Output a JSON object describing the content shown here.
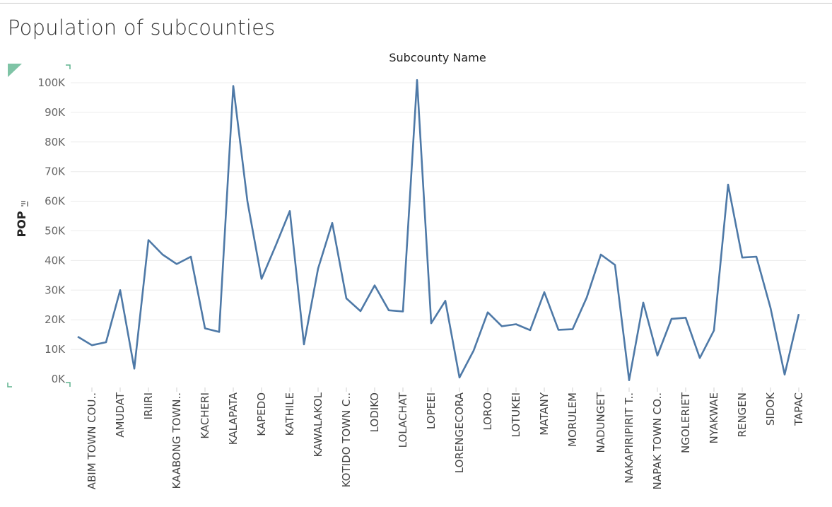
{
  "chart_data": {
    "type": "line",
    "title": "Population of subcounties",
    "column_header": "Subcounty Name",
    "ylabel": "POP",
    "ylabel_icon": "sort-icon",
    "ylim": [
      0,
      100000
    ],
    "yticks": [
      {
        "value": 0,
        "label": "0K"
      },
      {
        "value": 10000,
        "label": "10K"
      },
      {
        "value": 20000,
        "label": "20K"
      },
      {
        "value": 30000,
        "label": "30K"
      },
      {
        "value": 40000,
        "label": "40K"
      },
      {
        "value": 50000,
        "label": "50K"
      },
      {
        "value": 60000,
        "label": "60K"
      },
      {
        "value": 70000,
        "label": "70K"
      },
      {
        "value": 80000,
        "label": "80K"
      },
      {
        "value": 90000,
        "label": "90K"
      },
      {
        "value": 100000,
        "label": "100K"
      }
    ],
    "tick_labels": [
      "ABIM TOWN COU..",
      "AMUDAT",
      "IRIIRI",
      "KAABONG TOWN..",
      "KACHERI",
      "KALAPATA",
      "KAPEDO",
      "KATHILE",
      "KAWALAKOL",
      "KOTIDO TOWN C..",
      "LODIKO",
      "LOLACHAT",
      "LOPEEI",
      "LORENGECORA",
      "LOROO",
      "LOTUKEI",
      "MATANY",
      "MORULEM",
      "NADUNGET",
      "NAKAPIRIPIRIT T..",
      "NAPAK TOWN CO..",
      "NGOLERIET",
      "NYAKWAE",
      "RENGEN",
      "SIDOK",
      "TAPAC"
    ],
    "series": [
      {
        "values": [
          14300,
          11400,
          12400,
          30000,
          3500,
          46900,
          42000,
          38800,
          41300,
          17100,
          15900,
          98900,
          60000,
          33800,
          45000,
          56700,
          11700,
          37300,
          52700,
          27200,
          22900,
          31600,
          23200,
          22800,
          100900,
          18800,
          26400,
          500,
          9600,
          22500,
          17800,
          18500,
          16500,
          29300,
          16600,
          16800,
          27500,
          42000,
          38500,
          -400,
          25800,
          7900,
          20300,
          20700,
          7100,
          16400,
          65600,
          41000,
          41300,
          24000,
          1500,
          21900
        ],
        "color": "#4e79a7"
      }
    ],
    "gridlines": true,
    "legend": "none"
  }
}
